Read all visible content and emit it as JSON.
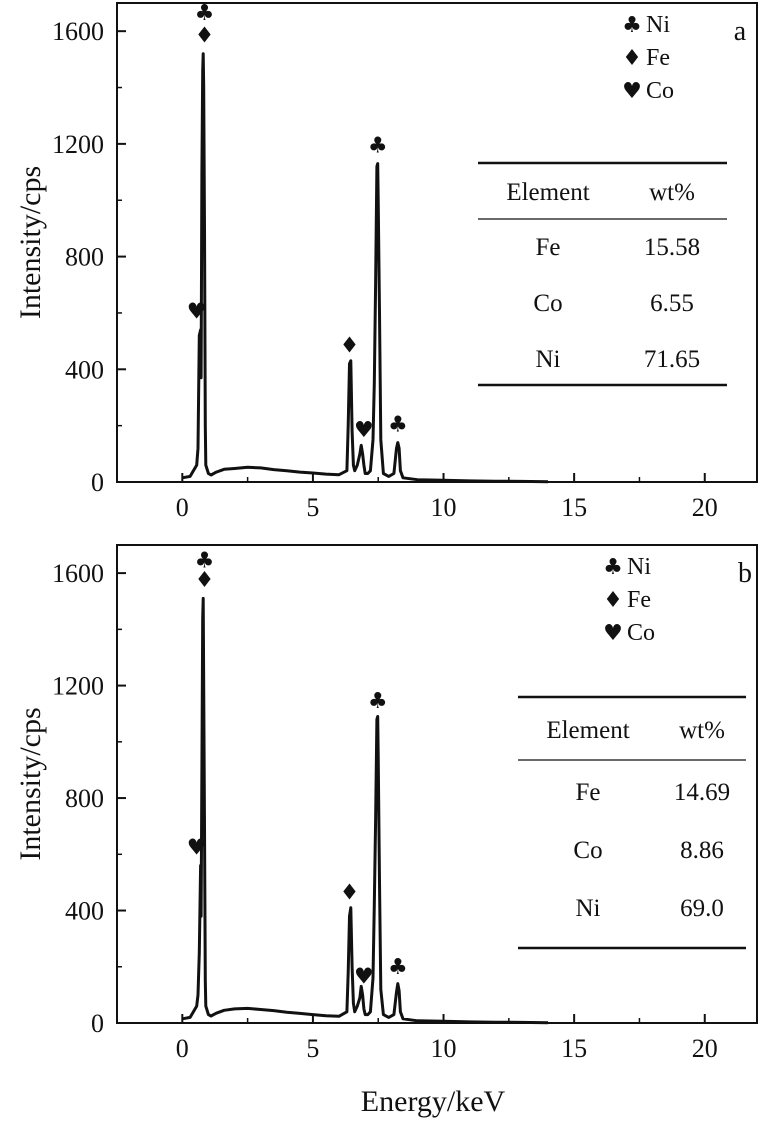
{
  "figure": {
    "xlabel": "Energy/keV",
    "ylabel": "Intensity/cps"
  },
  "legend": [
    {
      "symbol": "♣",
      "element": "Ni"
    },
    {
      "symbol": "♦",
      "element": "Fe"
    },
    {
      "symbol": "♥",
      "element": "Co"
    }
  ],
  "colors": {
    "line": "#111111",
    "background": "#ffffff"
  },
  "chart_data": [
    {
      "type": "line",
      "panel": "a",
      "xlabel": "",
      "ylabel": "Intensity/cps",
      "xlim": [
        -2.5,
        22
      ],
      "ylim": [
        0,
        1700
      ],
      "xticks": [
        0,
        5,
        10,
        15,
        20
      ],
      "yticks": [
        0,
        400,
        800,
        1200,
        1600
      ],
      "x": [
        0.0,
        0.3,
        0.55,
        0.6,
        0.65,
        0.7,
        0.72,
        0.75,
        0.78,
        0.8,
        0.82,
        0.85,
        0.88,
        0.9,
        1.0,
        1.1,
        1.3,
        1.6,
        2.0,
        2.5,
        3.0,
        3.5,
        4.0,
        4.5,
        5.0,
        5.5,
        6.0,
        6.3,
        6.35,
        6.4,
        6.45,
        6.5,
        6.55,
        6.6,
        6.7,
        6.8,
        6.85,
        6.9,
        6.95,
        7.0,
        7.1,
        7.2,
        7.3,
        7.35,
        7.4,
        7.45,
        7.48,
        7.5,
        7.55,
        7.6,
        7.7,
        7.9,
        8.1,
        8.2,
        8.25,
        8.3,
        8.35,
        8.45,
        9.0,
        10.0,
        11.0,
        12.0,
        13.0,
        14.0
      ],
      "y": [
        15,
        20,
        60,
        120,
        520,
        540,
        370,
        1100,
        1460,
        1520,
        1400,
        900,
        200,
        60,
        30,
        25,
        35,
        45,
        48,
        52,
        50,
        44,
        40,
        35,
        32,
        28,
        26,
        40,
        200,
        420,
        430,
        180,
        60,
        40,
        60,
        100,
        130,
        100,
        60,
        30,
        30,
        40,
        150,
        350,
        700,
        1120,
        1130,
        1000,
        600,
        150,
        30,
        20,
        30,
        120,
        140,
        120,
        40,
        15,
        8,
        6,
        4,
        3,
        2,
        1
      ],
      "peak_labels": [
        {
          "symbol": "♣",
          "element": "Ni",
          "x": 0.85,
          "y": 1640
        },
        {
          "symbol": "♦",
          "element": "Fe",
          "x": 0.85,
          "y": 1560
        },
        {
          "symbol": "♥",
          "element": "Co",
          "x": 0.55,
          "y": 580
        },
        {
          "symbol": "♦",
          "element": "Fe",
          "x": 6.4,
          "y": 460
        },
        {
          "symbol": "♥",
          "element": "Co",
          "x": 6.95,
          "y": 160
        },
        {
          "symbol": "♣",
          "element": "Ni",
          "x": 7.48,
          "y": 1170
        },
        {
          "symbol": "♣",
          "element": "Ni",
          "x": 8.25,
          "y": 180
        }
      ],
      "table": {
        "headers": [
          "Element",
          "wt%"
        ],
        "rows": [
          [
            "Fe",
            "15.58"
          ],
          [
            "Co",
            "6.55"
          ],
          [
            "Ni",
            "71.65"
          ]
        ]
      }
    },
    {
      "type": "line",
      "panel": "b",
      "xlabel": "Energy/keV",
      "ylabel": "Intensity/cps",
      "xlim": [
        -2.5,
        22
      ],
      "ylim": [
        0,
        1700
      ],
      "xticks": [
        0,
        5,
        10,
        15,
        20
      ],
      "yticks": [
        0,
        400,
        800,
        1200,
        1600
      ],
      "x": [
        0.0,
        0.3,
        0.55,
        0.6,
        0.65,
        0.7,
        0.72,
        0.75,
        0.78,
        0.8,
        0.82,
        0.85,
        0.88,
        0.9,
        1.0,
        1.1,
        1.3,
        1.6,
        2.0,
        2.5,
        3.0,
        3.5,
        4.0,
        4.5,
        5.0,
        5.5,
        6.0,
        6.3,
        6.35,
        6.4,
        6.45,
        6.5,
        6.55,
        6.6,
        6.7,
        6.8,
        6.85,
        6.9,
        6.95,
        7.0,
        7.1,
        7.2,
        7.3,
        7.35,
        7.4,
        7.45,
        7.48,
        7.5,
        7.55,
        7.6,
        7.7,
        7.9,
        8.1,
        8.2,
        8.25,
        8.3,
        8.35,
        8.45,
        9.0,
        10.0,
        11.0,
        12.0,
        13.0,
        14.0
      ],
      "y": [
        15,
        20,
        60,
        100,
        250,
        560,
        380,
        900,
        1440,
        1510,
        1200,
        700,
        150,
        60,
        30,
        25,
        35,
        45,
        50,
        52,
        48,
        44,
        38,
        34,
        30,
        26,
        24,
        40,
        180,
        380,
        410,
        200,
        70,
        40,
        60,
        90,
        130,
        100,
        50,
        30,
        30,
        40,
        160,
        420,
        720,
        1080,
        1090,
        950,
        500,
        120,
        30,
        20,
        30,
        110,
        140,
        115,
        40,
        15,
        8,
        6,
        4,
        3,
        2,
        1
      ],
      "peak_labels": [
        {
          "symbol": "♣",
          "element": "Ni",
          "x": 0.85,
          "y": 1620
        },
        {
          "symbol": "♦",
          "element": "Fe",
          "x": 0.85,
          "y": 1550
        },
        {
          "symbol": "♥",
          "element": "Co",
          "x": 0.55,
          "y": 600
        },
        {
          "symbol": "♦",
          "element": "Fe",
          "x": 6.4,
          "y": 440
        },
        {
          "symbol": "♥",
          "element": "Co",
          "x": 6.95,
          "y": 140
        },
        {
          "symbol": "♣",
          "element": "Ni",
          "x": 7.48,
          "y": 1120
        },
        {
          "symbol": "♣",
          "element": "Ni",
          "x": 8.25,
          "y": 175
        }
      ],
      "table": {
        "headers": [
          "Element",
          "wt%"
        ],
        "rows": [
          [
            "Fe",
            "14.69"
          ],
          [
            "Co",
            "8.86"
          ],
          [
            "Ni",
            "69.0"
          ]
        ]
      }
    }
  ]
}
